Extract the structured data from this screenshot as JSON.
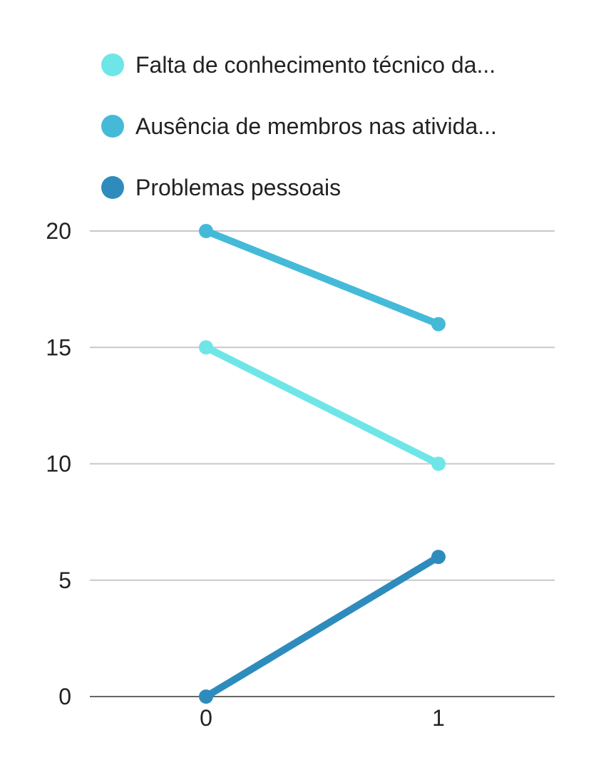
{
  "chart_data": {
    "type": "line",
    "x": [
      0,
      1
    ],
    "series": [
      {
        "name": "Falta de conhecimento técnico da...",
        "values": [
          15,
          10
        ],
        "color": "#6ee6e8"
      },
      {
        "name": "Ausência de membros nas ativida...",
        "values": [
          20,
          16
        ],
        "color": "#45bad8"
      },
      {
        "name": "Problemas pessoais",
        "values": [
          0,
          6
        ],
        "color": "#2e8cbd"
      }
    ],
    "yticks": [
      0,
      5,
      10,
      15,
      20
    ],
    "xticks": [
      0,
      1
    ],
    "xlim": [
      -0.5,
      1.5
    ],
    "ylim": [
      0,
      20
    ],
    "grid": true,
    "legend_position": "top"
  }
}
